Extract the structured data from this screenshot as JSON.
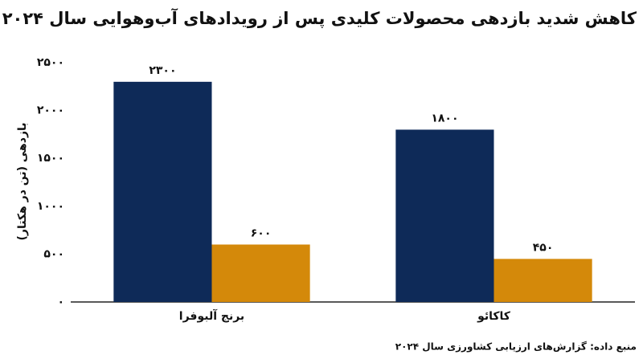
{
  "chart_data": {
    "type": "bar",
    "title": "کاهش شدید بازدهی محصولات کلیدی پس از رویدادهای آب‌وهوایی سال ۲۰۲۴",
    "y_label": "بازدهی (تن در هکتار)",
    "source": "منبع داده: گزارش‌های ارزیابی کشاورزی سال ۲۰۲۴",
    "categories": [
      "برنج آلبوفرا",
      "کاکائو"
    ],
    "series": [
      {
        "color": "#0e2a58",
        "values": [
          2300,
          1800
        ],
        "value_labels": [
          "۲۳۰۰",
          "۱۸۰۰"
        ]
      },
      {
        "color": "#d4890a",
        "values": [
          600,
          450
        ],
        "value_labels": [
          "۶۰۰",
          "۴۵۰"
        ]
      }
    ],
    "ylim": [
      0,
      2500
    ],
    "yticks": [
      {
        "value": 0,
        "label": "۰"
      },
      {
        "value": 500,
        "label": "۵۰۰"
      },
      {
        "value": 1000,
        "label": "۱۰۰۰"
      },
      {
        "value": 1500,
        "label": "۱۵۰۰"
      },
      {
        "value": 2000,
        "label": "۲۰۰۰"
      },
      {
        "value": 2500,
        "label": "۲۵۰۰"
      }
    ],
    "grid": false
  }
}
